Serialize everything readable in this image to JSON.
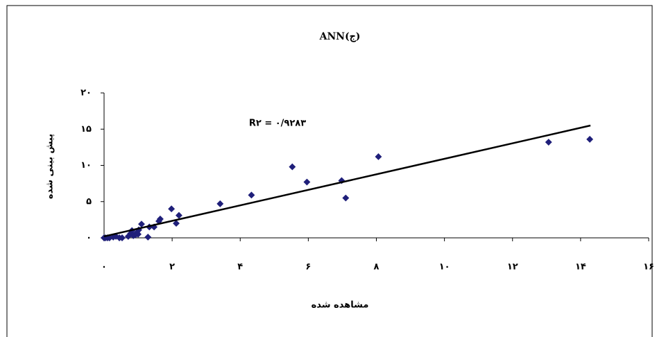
{
  "chart_data": {
    "type": "scatter",
    "title": "ANN(ج)",
    "x_label": "مشاهده شده",
    "y_label": "پیش بینی شده",
    "annotation": "R۲ = ۰/۹۲۸۳",
    "color": "#1f1f7a",
    "x": [
      0,
      0.04,
      0.1,
      0.16,
      0.27,
      0.35,
      0.45,
      0.53,
      0.71,
      0.78,
      0.82,
      0.86,
      0.92,
      0.96,
      1.0,
      1.02,
      1.1,
      1.29,
      1.33,
      1.47,
      1.61,
      1.65,
      1.98,
      2.12,
      2.2,
      3.41,
      4.33,
      5.53,
      5.96,
      6.98,
      7.1,
      8.06,
      13.06,
      14.27
    ],
    "values": [
      0,
      0,
      0,
      0,
      0.1,
      0.2,
      0,
      0,
      0.2,
      0.6,
      1.0,
      0.3,
      0.4,
      0.7,
      0.5,
      1.1,
      1.9,
      0.1,
      1.5,
      1.5,
      2.3,
      2.6,
      4.0,
      2.0,
      3.1,
      4.7,
      5.9,
      9.8,
      7.7,
      7.9,
      5.5,
      11.2,
      13.2,
      13.6
    ],
    "trendline": {
      "x": [
        0,
        14.29
      ],
      "y": [
        0.2,
        15.5
      ],
      "color": "#000000"
    },
    "xlim": [
      0,
      16
    ],
    "xticks": [
      {
        "value": 0,
        "label": "۰"
      },
      {
        "value": 2,
        "label": "۲"
      },
      {
        "value": 4,
        "label": "۴"
      },
      {
        "value": 6,
        "label": "۶"
      },
      {
        "value": 8,
        "label": "۸"
      },
      {
        "value": 10,
        "label": "۱۰"
      },
      {
        "value": 12,
        "label": "۱۲"
      },
      {
        "value": 14,
        "label": "۱۴"
      },
      {
        "value": 16,
        "label": "۱۶"
      }
    ],
    "ylim": [
      0,
      20
    ],
    "yticks": [
      {
        "value": 0,
        "label": "۰"
      },
      {
        "value": 5,
        "label": "۵"
      },
      {
        "value": 10,
        "label": "۱۰"
      },
      {
        "value": 15,
        "label": "۱۵"
      },
      {
        "value": 20,
        "label": "۲۰"
      }
    ]
  }
}
